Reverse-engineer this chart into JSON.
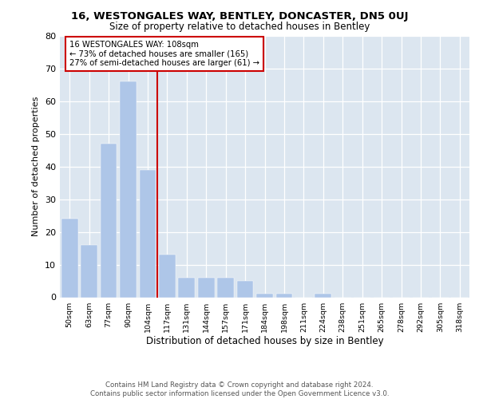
{
  "title1": "16, WESTONGALES WAY, BENTLEY, DONCASTER, DN5 0UJ",
  "title2": "Size of property relative to detached houses in Bentley",
  "xlabel": "Distribution of detached houses by size in Bentley",
  "ylabel": "Number of detached properties",
  "categories": [
    "50sqm",
    "63sqm",
    "77sqm",
    "90sqm",
    "104sqm",
    "117sqm",
    "131sqm",
    "144sqm",
    "157sqm",
    "171sqm",
    "184sqm",
    "198sqm",
    "211sqm",
    "224sqm",
    "238sqm",
    "251sqm",
    "265sqm",
    "278sqm",
    "292sqm",
    "305sqm",
    "318sqm"
  ],
  "values": [
    24,
    16,
    47,
    66,
    39,
    13,
    6,
    6,
    6,
    5,
    1,
    1,
    0,
    1,
    0,
    0,
    0,
    0,
    0,
    0,
    0
  ],
  "bar_color": "#aec6e8",
  "bar_edgecolor": "#aec6e8",
  "vline_x": 4.5,
  "vline_color": "#cc0000",
  "annotation_line1": "16 WESTONGALES WAY: 108sqm",
  "annotation_line2": "← 73% of detached houses are smaller (165)",
  "annotation_line3": "27% of semi-detached houses are larger (61) →",
  "annotation_box_color": "#cc0000",
  "ylim": [
    0,
    80
  ],
  "yticks": [
    0,
    10,
    20,
    30,
    40,
    50,
    60,
    70,
    80
  ],
  "background_color": "#dce6f0",
  "footer": "Contains HM Land Registry data © Crown copyright and database right 2024.\nContains public sector information licensed under the Open Government Licence v3.0."
}
